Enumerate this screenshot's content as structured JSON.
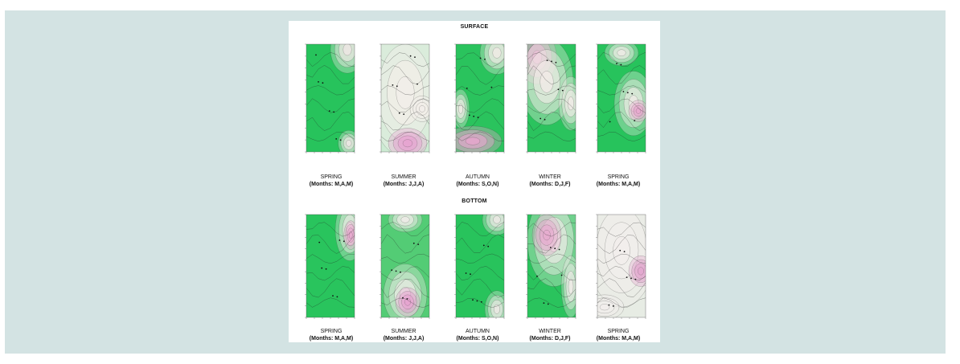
{
  "sections": [
    {
      "title": "SURFACE",
      "panels": [
        {
          "season": "SPRING",
          "months": "(Months: M,A,M)",
          "colors": {
            "base": "#27c35c",
            "light": "#f1e8e6",
            "pink": "#e7a7cf"
          }
        },
        {
          "season": "SUMMER",
          "months": "(Months: J,J,A)",
          "colors": {
            "base": "#cdebd3",
            "light": "#f3eeea",
            "pink": "#e6a2d0"
          }
        },
        {
          "season": "AUTUMN",
          "months": "(Months: S,O,N)",
          "colors": {
            "base": "#2ac35d",
            "light": "#f2ebe8",
            "pink": "#e8a6cf"
          }
        },
        {
          "season": "WINTER",
          "months": "(Months: D,J,F)",
          "colors": {
            "base": "#2bc35e",
            "light": "#f4ece9",
            "pink": "#e6aacf"
          }
        },
        {
          "season": "SPRING",
          "months": "(Months: M,A,M)",
          "colors": {
            "base": "#27c35c",
            "light": "#f1ebe8",
            "pink": "#e7a7cf"
          }
        }
      ]
    },
    {
      "title": "BOTTOM",
      "panels": [
        {
          "season": "SPRING",
          "months": "(Months: M,A,M)",
          "colors": {
            "base": "#29c45d",
            "light": "#f0ebe8",
            "pink": "#e7a7cf"
          }
        },
        {
          "season": "SUMMER",
          "months": "(Months: J,J,A)",
          "colors": {
            "base": "#53cc75",
            "light": "#f1ece9",
            "pink": "#e6a2d0"
          }
        },
        {
          "season": "AUTUMN",
          "months": "(Months: S,O,N)",
          "colors": {
            "base": "#28c35c",
            "light": "#eee9e6",
            "pink": "#e7a7cf"
          }
        },
        {
          "season": "WINTER",
          "months": "(Months: D,J,F)",
          "colors": {
            "base": "#2ac35d",
            "light": "#f2ebe9",
            "pink": "#e6aacf"
          }
        },
        {
          "season": "SPRING",
          "months": "(Months: M,A,M)",
          "colors": {
            "base": "#e7ece4",
            "light": "#f2eeec",
            "pink": "#e2a6cf"
          }
        }
      ]
    }
  ]
}
